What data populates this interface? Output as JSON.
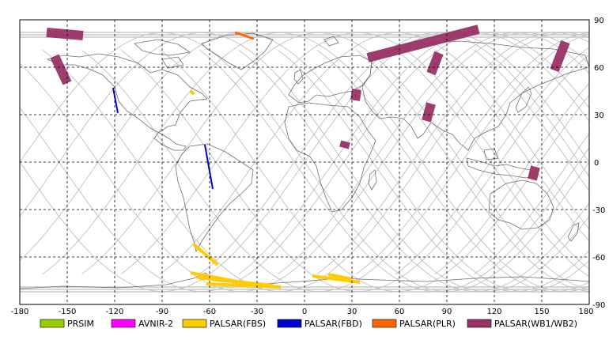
{
  "map": {
    "projection": "equirectangular",
    "lon_range": [
      -180,
      180
    ],
    "lat_range": [
      -90,
      90
    ],
    "gridlines": "dashed",
    "x_ticks": [
      "-180",
      "-150",
      "-120",
      "-90",
      "-60",
      "-30",
      "0",
      "30",
      "60",
      "90",
      "120",
      "150",
      "180"
    ],
    "y_ticks": [
      "90",
      "60",
      "30",
      "0",
      "-30",
      "-60",
      "-90"
    ]
  },
  "legend": [
    {
      "label": "PRSIM",
      "color": "#99cc00"
    },
    {
      "label": "AVNIR-2",
      "color": "#ff00ff"
    },
    {
      "label": "PALSAR(FBS)",
      "color": "#ffcc00"
    },
    {
      "label": "PALSAR(FBD)",
      "color": "#0000cc"
    },
    {
      "label": "PALSAR(PLR)",
      "color": "#ff6600"
    },
    {
      "label": "PALSAR(WB1/WB2)",
      "color": "#993366"
    }
  ],
  "swaths": {
    "wb": [
      {
        "lon": -163,
        "lat": 82,
        "lon2": -140,
        "lat2": 80
      },
      {
        "lon": -158,
        "lat": 67,
        "lon2": -150,
        "lat2": 50
      },
      {
        "lon": 40,
        "lat": 66,
        "lon2": 110,
        "lat2": 84
      },
      {
        "lon": 85,
        "lat": 69,
        "lon2": 80,
        "lat2": 56
      },
      {
        "lon": 165,
        "lat": 76,
        "lon2": 158,
        "lat2": 58
      },
      {
        "lon": 33,
        "lat": 46,
        "lon2": 32,
        "lat2": 39
      },
      {
        "lon": 80,
        "lat": 37,
        "lon2": 77,
        "lat2": 26
      },
      {
        "lon": 26,
        "lat": 13,
        "lon2": 25,
        "lat2": 9
      },
      {
        "lon": 146,
        "lat": -3,
        "lon2": 144,
        "lat2": -11
      }
    ],
    "fbd": [
      {
        "lon": -121,
        "lat": 47,
        "lon2": -118,
        "lat2": 31
      },
      {
        "lon": -63,
        "lat": 11,
        "lon2": -58,
        "lat2": -17
      }
    ],
    "plr": [
      {
        "lon": -44,
        "lat": 82,
        "lon2": -32,
        "lat2": 78
      }
    ],
    "fbs": [
      {
        "lon": -70,
        "lat": -52,
        "lon2": -55,
        "lat2": -65
      },
      {
        "lon": -72,
        "lat": -70,
        "lon2": -40,
        "lat2": -76
      },
      {
        "lon": -68,
        "lat": -73,
        "lon2": -20,
        "lat2": -78
      },
      {
        "lon": -62,
        "lat": -77,
        "lon2": -15,
        "lat2": -79
      },
      {
        "lon": 5,
        "lat": -72,
        "lon2": 35,
        "lat2": -76
      },
      {
        "lon": 15,
        "lat": -71,
        "lon2": 30,
        "lat2": -74
      },
      {
        "lon": -72,
        "lat": 45,
        "lon2": -70,
        "lat2": 43
      }
    ]
  }
}
